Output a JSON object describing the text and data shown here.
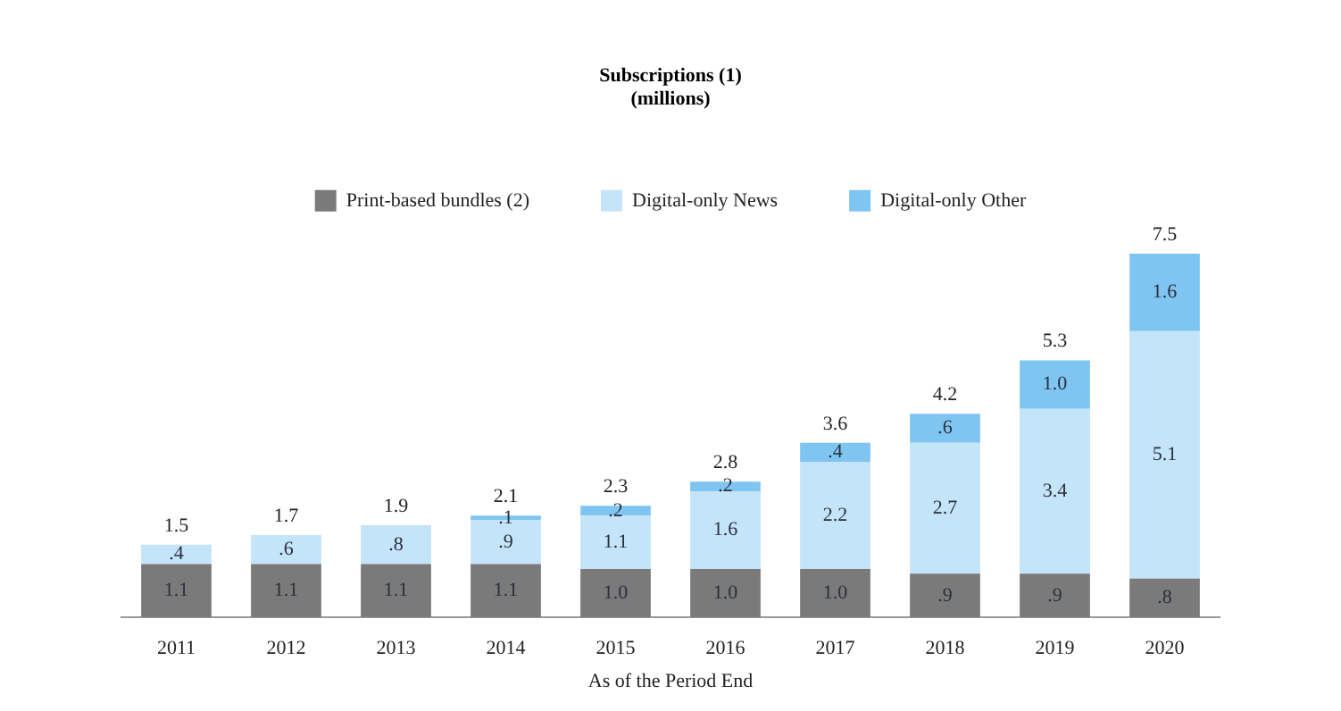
{
  "chart_data": {
    "type": "bar",
    "title": "Subscriptions (1)",
    "subtitle": "(millions)",
    "xlabel": "As of the Period End",
    "categories": [
      "2011",
      "2012",
      "2013",
      "2014",
      "2015",
      "2016",
      "2017",
      "2018",
      "2019",
      "2020"
    ],
    "stacked": true,
    "legend": "top",
    "series": [
      {
        "name": "Print-based bundles (2)",
        "color": "#7a7a7a",
        "values": [
          1.1,
          1.1,
          1.1,
          1.1,
          1.0,
          1.0,
          1.0,
          0.9,
          0.9,
          0.8
        ],
        "value_labels": [
          "1.1",
          "1.1",
          "1.1",
          "1.1",
          "1.0",
          "1.0",
          "1.0",
          ".9",
          ".9",
          ".8"
        ]
      },
      {
        "name": "Digital-only News",
        "color": "#c4e4f9",
        "values": [
          0.4,
          0.6,
          0.8,
          0.9,
          1.1,
          1.6,
          2.2,
          2.7,
          3.4,
          5.1
        ],
        "value_labels": [
          ".4",
          ".6",
          ".8",
          ".9",
          "1.1",
          "1.6",
          "2.2",
          "2.7",
          "3.4",
          "5.1"
        ]
      },
      {
        "name": "Digital-only Other",
        "color": "#7fc5f2",
        "values": [
          null,
          null,
          null,
          0.1,
          0.2,
          0.2,
          0.4,
          0.6,
          1.0,
          1.6
        ],
        "value_labels": [
          null,
          null,
          null,
          ".1",
          ".2",
          ".2",
          ".4",
          ".6",
          "1.0",
          "1.6"
        ]
      }
    ],
    "totals": [
      "1.5",
      "1.7",
      "1.9",
      "2.1",
      "2.3",
      "2.8",
      "3.6",
      "4.2",
      "5.3",
      "7.5"
    ]
  }
}
